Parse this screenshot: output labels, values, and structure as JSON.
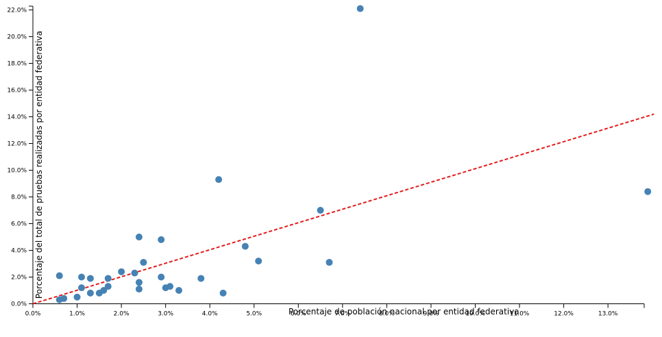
{
  "chart_data": {
    "type": "scatter",
    "xlabel": "Porcentaje de población nacional por entidad federativa",
    "ylabel": "Porcentaje del total de pruebas realizadas por entidad federativa",
    "xlim": [
      0,
      0.14
    ],
    "ylim": [
      0,
      0.22
    ],
    "x_ticks": [
      "0.0%",
      "1.0%",
      "2.0%",
      "3.0%",
      "4.0%",
      "5.0%",
      "6.0%",
      "7.0%",
      "8.0%",
      "9.0%",
      "10.0%",
      "11.0%",
      "12.0%",
      "13.0%"
    ],
    "y_ticks": [
      "0.0%",
      "2.0%",
      "4.0%",
      "6.0%",
      "8.0%",
      "10.0%",
      "12.0%",
      "14.0%",
      "16.0%",
      "18.0%",
      "20.0%",
      "22.0%"
    ],
    "point_color": "#4682b4",
    "reference_line": {
      "style": "dashed",
      "color": "#e31a1c",
      "from": [
        0,
        0
      ],
      "to": [
        0.1404,
        0.142
      ]
    },
    "grid": false,
    "points": [
      {
        "x": 0.006,
        "y": 0.021
      },
      {
        "x": 0.006,
        "y": 0.003
      },
      {
        "x": 0.007,
        "y": 0.004
      },
      {
        "x": 0.01,
        "y": 0.005
      },
      {
        "x": 0.011,
        "y": 0.012
      },
      {
        "x": 0.011,
        "y": 0.02
      },
      {
        "x": 0.013,
        "y": 0.008
      },
      {
        "x": 0.013,
        "y": 0.019
      },
      {
        "x": 0.015,
        "y": 0.008
      },
      {
        "x": 0.016,
        "y": 0.01
      },
      {
        "x": 0.017,
        "y": 0.013
      },
      {
        "x": 0.017,
        "y": 0.019
      },
      {
        "x": 0.02,
        "y": 0.024
      },
      {
        "x": 0.023,
        "y": 0.023
      },
      {
        "x": 0.024,
        "y": 0.011
      },
      {
        "x": 0.024,
        "y": 0.016
      },
      {
        "x": 0.024,
        "y": 0.05
      },
      {
        "x": 0.025,
        "y": 0.031
      },
      {
        "x": 0.029,
        "y": 0.02
      },
      {
        "x": 0.029,
        "y": 0.048
      },
      {
        "x": 0.03,
        "y": 0.012
      },
      {
        "x": 0.031,
        "y": 0.013
      },
      {
        "x": 0.033,
        "y": 0.01
      },
      {
        "x": 0.038,
        "y": 0.019
      },
      {
        "x": 0.042,
        "y": 0.093
      },
      {
        "x": 0.043,
        "y": 0.008
      },
      {
        "x": 0.048,
        "y": 0.043
      },
      {
        "x": 0.051,
        "y": 0.032
      },
      {
        "x": 0.065,
        "y": 0.07
      },
      {
        "x": 0.067,
        "y": 0.031
      },
      {
        "x": 0.074,
        "y": 0.221
      },
      {
        "x": 0.139,
        "y": 0.084
      }
    ]
  }
}
